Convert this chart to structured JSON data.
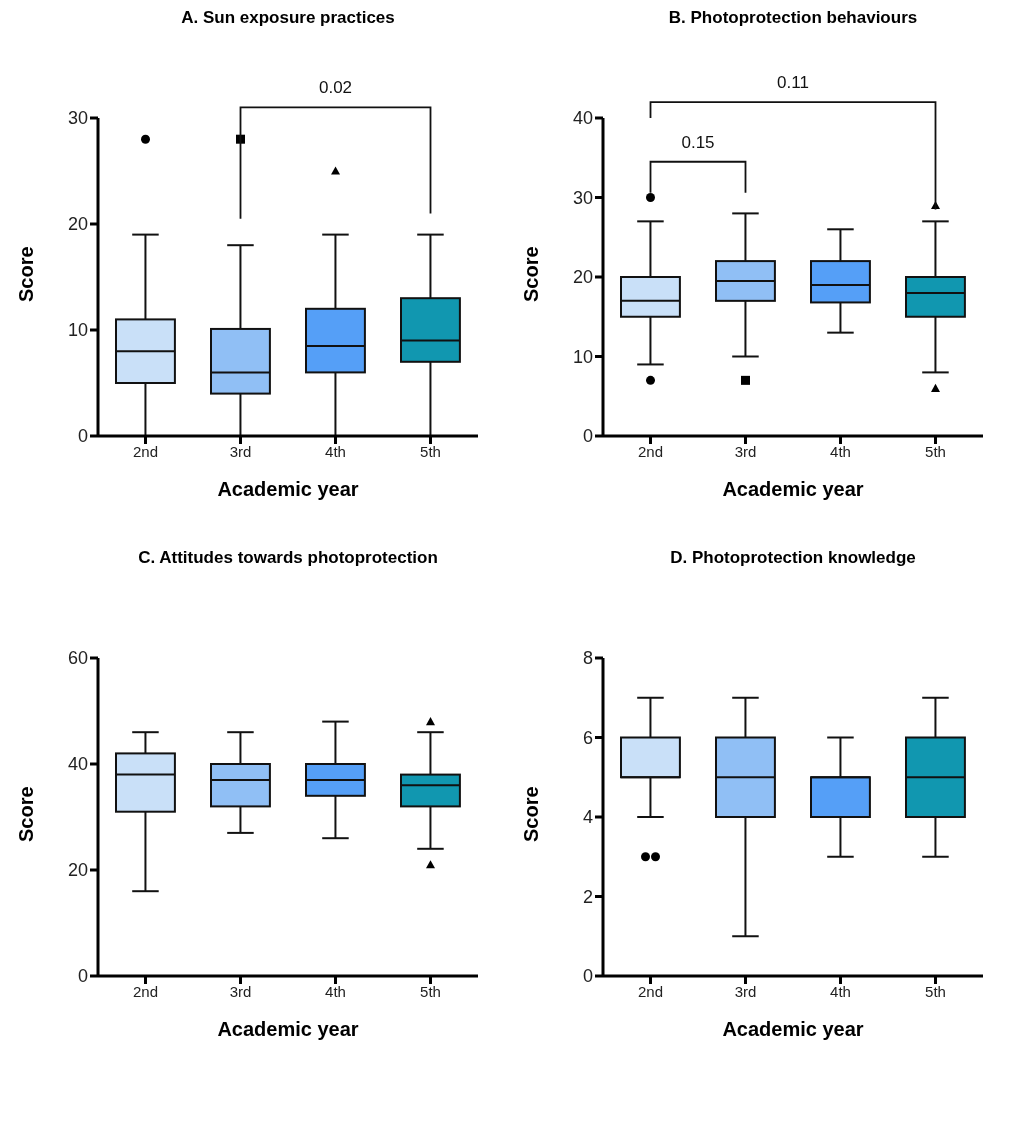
{
  "chart_data": [
    {
      "type": "box",
      "title": "A. Sun exposure practices",
      "xlabel": "Academic year",
      "ylabel": "Score",
      "categories": [
        "2nd",
        "3rd",
        "4th",
        "5th"
      ],
      "ylim": [
        0,
        30
      ],
      "yticks": [
        0,
        10,
        20,
        30
      ],
      "annotations": [
        "0.02"
      ],
      "series": [
        {
          "color": "#c9e0f8",
          "marker": "circle",
          "boxes": [
            {
              "low": 0,
              "q1": 5,
              "median": 8,
              "q3": 11,
              "high": 19,
              "outliers": [
                28
              ]
            },
            null,
            null,
            null
          ]
        },
        {
          "color": "#90bff5",
          "marker": "square",
          "boxes": [
            null,
            {
              "low": 0,
              "q1": 4,
              "median": 6,
              "q3": 10.1,
              "high": 18,
              "outliers": [
                28
              ]
            },
            null,
            null
          ]
        },
        {
          "color": "#559ff7",
          "marker": "triangle",
          "boxes": [
            null,
            null,
            {
              "low": 0,
              "q1": 6,
              "median": 8.5,
              "q3": 12,
              "high": 19,
              "outliers": [
                25
              ]
            },
            null
          ]
        },
        {
          "color": "#1197b0",
          "boxes": [
            null,
            null,
            null,
            {
              "low": 0,
              "q1": 7,
              "median": 9,
              "q3": 13,
              "high": 19
            }
          ]
        }
      ]
    },
    {
      "type": "box",
      "title": "B. Photoprotection behaviours",
      "xlabel": "Academic year",
      "ylabel": "Score",
      "categories": [
        "2nd",
        "3rd",
        "4th",
        "5th"
      ],
      "ylim": [
        0,
        40
      ],
      "yticks": [
        0,
        10,
        20,
        30,
        40
      ],
      "annotations": [
        "0.11",
        "0.15"
      ],
      "series": [
        {
          "color": "#c9e0f8",
          "marker": "circle",
          "boxes": [
            {
              "low": 9,
              "q1": 15,
              "median": 17,
              "q3": 20,
              "high": 27,
              "outliers": [
                30,
                7
              ]
            },
            null,
            null,
            null
          ]
        },
        {
          "color": "#90bff5",
          "marker": "square",
          "boxes": [
            null,
            {
              "low": 10,
              "q1": 17,
              "median": 19.5,
              "q3": 22,
              "high": 28,
              "outliers": [
                7
              ]
            },
            null,
            null
          ]
        },
        {
          "color": "#559ff7",
          "boxes": [
            null,
            null,
            {
              "low": 13,
              "q1": 16.8,
              "median": 19,
              "q3": 22,
              "high": 26
            },
            null
          ]
        },
        {
          "color": "#1197b0",
          "marker": "triangle",
          "boxes": [
            null,
            null,
            null,
            {
              "low": 8,
              "q1": 15,
              "median": 18,
              "q3": 20,
              "high": 27,
              "outliers": [
                29,
                6
              ]
            }
          ]
        }
      ]
    },
    {
      "type": "box",
      "title": "C. Attitudes towards photoprotection",
      "xlabel": "Academic year",
      "ylabel": "Score",
      "categories": [
        "2nd",
        "3rd",
        "4th",
        "5th"
      ],
      "ylim": [
        0,
        60
      ],
      "yticks": [
        0,
        20,
        40,
        60
      ],
      "series": [
        {
          "color": "#c9e0f8",
          "boxes": [
            {
              "low": 16,
              "q1": 31,
              "median": 38,
              "q3": 42,
              "high": 46
            },
            null,
            null,
            null
          ]
        },
        {
          "color": "#90bff5",
          "boxes": [
            null,
            {
              "low": 27,
              "q1": 32,
              "median": 37,
              "q3": 40,
              "high": 46
            },
            null,
            null
          ]
        },
        {
          "color": "#559ff7",
          "boxes": [
            null,
            null,
            {
              "low": 26,
              "q1": 34,
              "median": 37,
              "q3": 40,
              "high": 48
            },
            null
          ]
        },
        {
          "color": "#1197b0",
          "marker": "triangle",
          "boxes": [
            null,
            null,
            null,
            {
              "low": 24,
              "q1": 32,
              "median": 36,
              "q3": 38,
              "high": 46,
              "outliers": [
                48,
                21
              ]
            }
          ]
        }
      ]
    },
    {
      "type": "box",
      "title": "D. Photoprotection knowledge",
      "xlabel": "Academic year",
      "ylabel": "Score",
      "categories": [
        "2nd",
        "3rd",
        "4th",
        "5th"
      ],
      "ylim": [
        0,
        8
      ],
      "yticks": [
        0,
        2,
        4,
        6,
        8
      ],
      "series": [
        {
          "color": "#c9e0f8",
          "marker": "circle",
          "boxes": [
            {
              "low": 4,
              "q1": 5,
              "median": 5,
              "q3": 6,
              "high": 7,
              "outliers": [
                3,
                3
              ]
            },
            null,
            null,
            null
          ]
        },
        {
          "color": "#90bff5",
          "boxes": [
            null,
            {
              "low": 1,
              "q1": 4,
              "median": 5,
              "q3": 6,
              "high": 7
            },
            null,
            null
          ]
        },
        {
          "color": "#559ff7",
          "boxes": [
            null,
            null,
            {
              "low": 3,
              "q1": 4,
              "median": 5,
              "q3": 5,
              "high": 6
            },
            null
          ]
        },
        {
          "color": "#1197b0",
          "boxes": [
            null,
            null,
            null,
            {
              "low": 3,
              "q1": 4,
              "median": 5,
              "q3": 6,
              "high": 7
            }
          ]
        }
      ]
    }
  ]
}
